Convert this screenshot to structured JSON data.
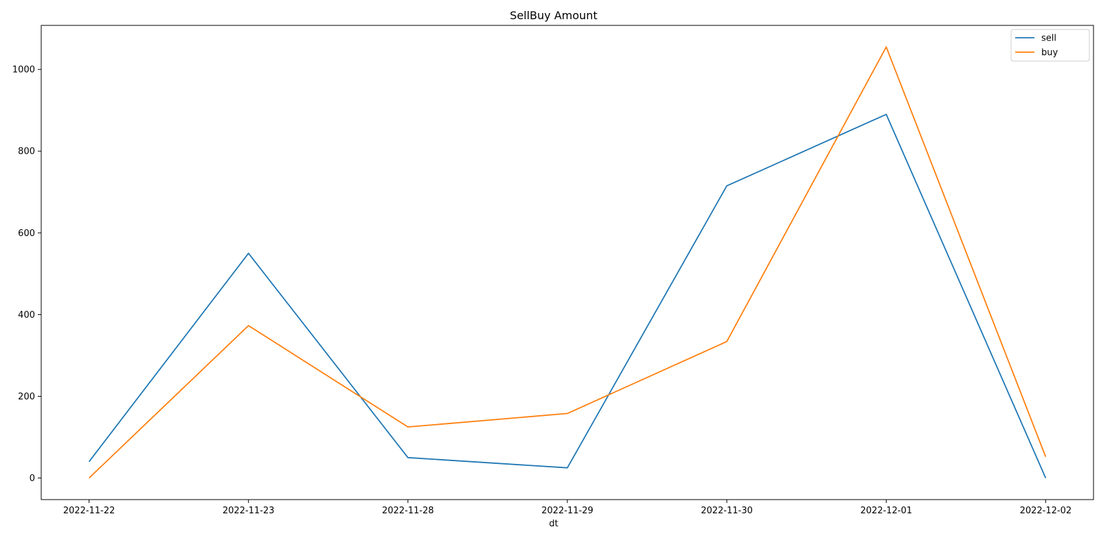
{
  "chart_data": {
    "type": "line",
    "title": "SellBuy Amount",
    "xlabel": "dt",
    "ylabel": "",
    "categories": [
      "2022-11-22",
      "2022-11-23",
      "2022-11-28",
      "2022-11-29",
      "2022-11-30",
      "2022-12-01",
      "2022-12-02"
    ],
    "series": [
      {
        "name": "sell",
        "color": "#1f77b4",
        "values": [
          40,
          550,
          50,
          25,
          715,
          890,
          0
        ]
      },
      {
        "name": "buy",
        "color": "#ff7f0e",
        "values": [
          0,
          373,
          125,
          158,
          334,
          1055,
          52
        ]
      }
    ],
    "ylim": [
      -52.75,
      1107.75
    ],
    "yticks": [
      0,
      200,
      400,
      600,
      800,
      1000
    ],
    "grid": false,
    "legend": "top-right"
  }
}
